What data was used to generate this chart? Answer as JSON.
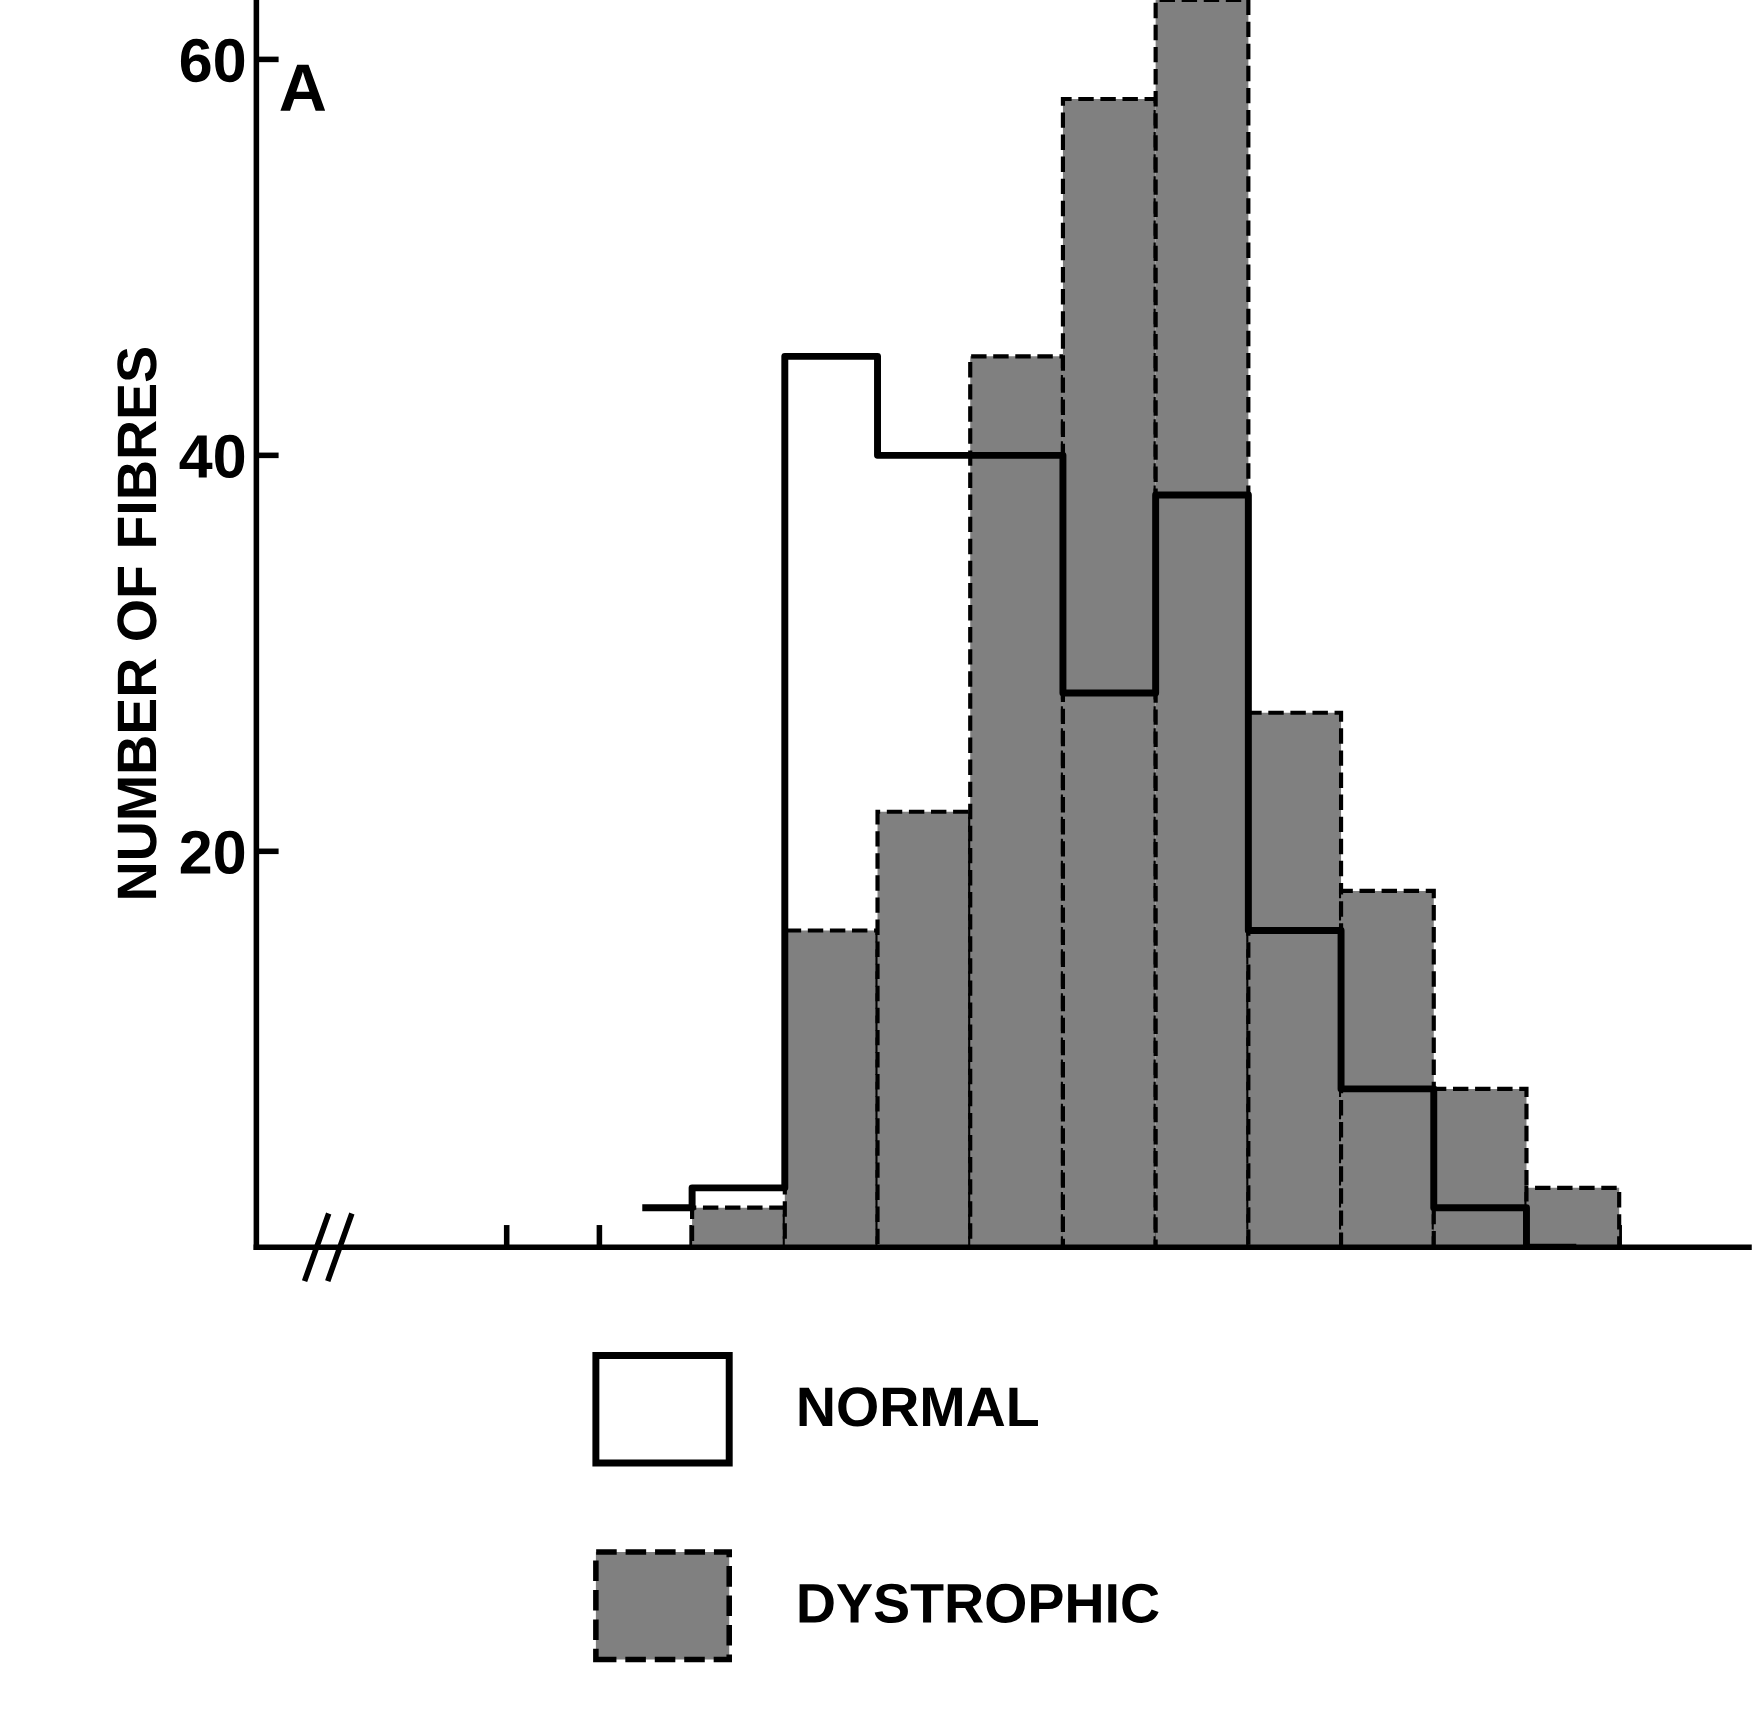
{
  "chart_data": {
    "type": "bar",
    "ylabel": "NUMBER OF FIBRES",
    "annotations": [
      "A"
    ],
    "categories": [
      null,
      null,
      null,
      null,
      null,
      null,
      null,
      null,
      null,
      null,
      null
    ],
    "series": [
      {
        "name": "NORMAL",
        "type": "step",
        "color": "#000000",
        "values": [
          2,
          3,
          45,
          40,
          40,
          28,
          38,
          16,
          8,
          2,
          0
        ]
      },
      {
        "name": "DYSTROPHIC",
        "color": "#808080",
        "values": [
          null,
          2,
          16,
          22,
          45,
          58,
          63,
          27,
          18,
          8,
          3
        ]
      }
    ],
    "ylim": [
      0,
      63
    ],
    "yticks": [
      20,
      40,
      60
    ],
    "grid": false,
    "legend": "bottom"
  }
}
